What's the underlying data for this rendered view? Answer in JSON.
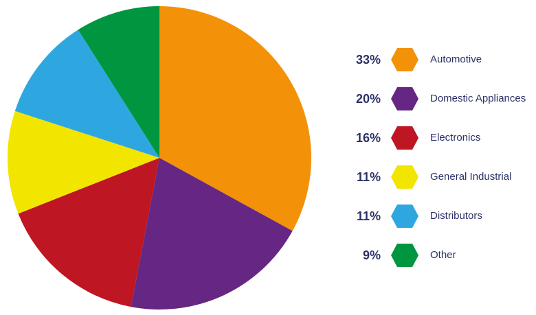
{
  "chart_data": {
    "type": "pie",
    "start_angle_deg": 0,
    "direction": "clockwise",
    "legend_position": "right",
    "slices": [
      {
        "label": "Automotive",
        "percent_label": "33%",
        "value": 33,
        "color": "#f39208"
      },
      {
        "label": "Domestic Appliances",
        "percent_label": "20%",
        "value": 20,
        "color": "#662683"
      },
      {
        "label": "Electronics",
        "percent_label": "16%",
        "value": 16,
        "color": "#be1622"
      },
      {
        "label": "General Industrial",
        "percent_label": "11%",
        "value": 11,
        "color": "#f2e500"
      },
      {
        "label": "Distributors",
        "percent_label": "11%",
        "value": 11,
        "color": "#2ea7e0"
      },
      {
        "label": "Other",
        "percent_label": "9%",
        "value": 9,
        "color": "#009640"
      }
    ]
  },
  "legend": {
    "items": [
      {
        "percent": "33%",
        "label": "Automotive",
        "color": "#f39208"
      },
      {
        "percent": "20%",
        "label": "Domestic Appliances",
        "color": "#662683"
      },
      {
        "percent": "16%",
        "label": "Electronics",
        "color": "#be1622"
      },
      {
        "percent": "11%",
        "label": "General Industrial",
        "color": "#f2e500"
      },
      {
        "percent": "11%",
        "label": "Distributors",
        "color": "#2ea7e0"
      },
      {
        "percent": "9%",
        "label": "Other",
        "color": "#009640"
      }
    ]
  }
}
